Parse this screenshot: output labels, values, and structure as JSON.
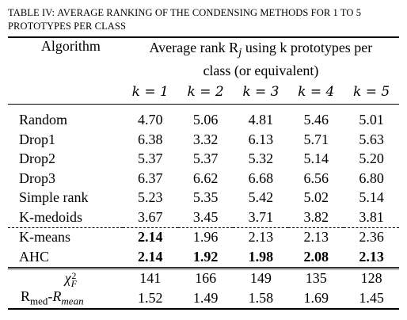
{
  "caption": {
    "prefix": "TABLE IV: ",
    "text": "AVERAGE RANKING OF THE CONDENSING METHODS FOR 1 TO 5 PROTOTYPES PER CLASS"
  },
  "header": {
    "algorithm": "Algorithm",
    "average_rank_bold": "Average rank R",
    "average_rank_sub": "j",
    "average_rank_rest": " using k prototypes per",
    "average_rank_line2": "class (or equivalent)",
    "k_labels": [
      "k = 1",
      "k = 2",
      "k = 3",
      "k = 4",
      "k = 5"
    ]
  },
  "rows": [
    {
      "name": "Random",
      "values": [
        "4.70",
        "5.06",
        "4.81",
        "5.46",
        "5.01"
      ],
      "bold": [
        false,
        false,
        false,
        false,
        false
      ]
    },
    {
      "name": "Drop1",
      "values": [
        "6.38",
        "3.32",
        "6.13",
        "5.71",
        "5.63"
      ],
      "bold": [
        false,
        false,
        false,
        false,
        false
      ]
    },
    {
      "name": "Drop2",
      "values": [
        "5.37",
        "5.37",
        "5.32",
        "5.14",
        "5.20"
      ],
      "bold": [
        false,
        false,
        false,
        false,
        false
      ]
    },
    {
      "name": "Drop3",
      "values": [
        "6.37",
        "6.62",
        "6.68",
        "6.56",
        "6.80"
      ],
      "bold": [
        false,
        false,
        false,
        false,
        false
      ]
    },
    {
      "name": "Simple rank",
      "values": [
        "5.23",
        "5.35",
        "5.42",
        "5.02",
        "5.14"
      ],
      "bold": [
        false,
        false,
        false,
        false,
        false
      ]
    },
    {
      "name": "K-medoids",
      "values": [
        "3.67",
        "3.45",
        "3.71",
        "3.82",
        "3.81"
      ],
      "bold": [
        false,
        false,
        false,
        false,
        false
      ]
    },
    {
      "name": "K-means",
      "values": [
        "2.14",
        "1.96",
        "2.13",
        "2.13",
        "2.36"
      ],
      "bold": [
        true,
        false,
        false,
        false,
        false
      ]
    },
    {
      "name": "AHC",
      "values": [
        "2.14",
        "1.92",
        "1.98",
        "2.08",
        "2.13"
      ],
      "bold": [
        true,
        true,
        true,
        true,
        true
      ]
    }
  ],
  "stats": {
    "chi": {
      "symbol": "χ",
      "sup": "2",
      "sub": "F",
      "values": [
        "141",
        "166",
        "149",
        "135",
        "128"
      ]
    },
    "rmed": {
      "label_a": "R",
      "label_a_sub": "med",
      "dash": "-",
      "label_b": "R",
      "label_b_sub": "mean",
      "values": [
        "1.52",
        "1.49",
        "1.58",
        "1.69",
        "1.45"
      ]
    }
  }
}
